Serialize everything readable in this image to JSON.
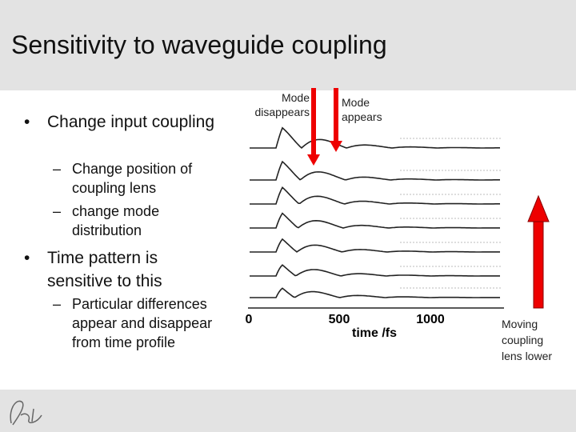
{
  "header": {
    "title": "Sensitivity to waveguide coupling"
  },
  "bullets": [
    {
      "text": "Change input coupling",
      "sub": [
        "Change position of coupling lens",
        "change mode distribution"
      ]
    },
    {
      "text": "Time pattern is sensitive to this",
      "sub": [
        "Particular differences appear and disappear from time profile"
      ]
    }
  ],
  "figure": {
    "annotations": [
      "Mode disappears",
      "Mode appears"
    ],
    "x_ticks": [
      "0",
      "500",
      "1000"
    ],
    "x_label": "time /fs",
    "caption": "Moving coupling lens lower"
  }
}
